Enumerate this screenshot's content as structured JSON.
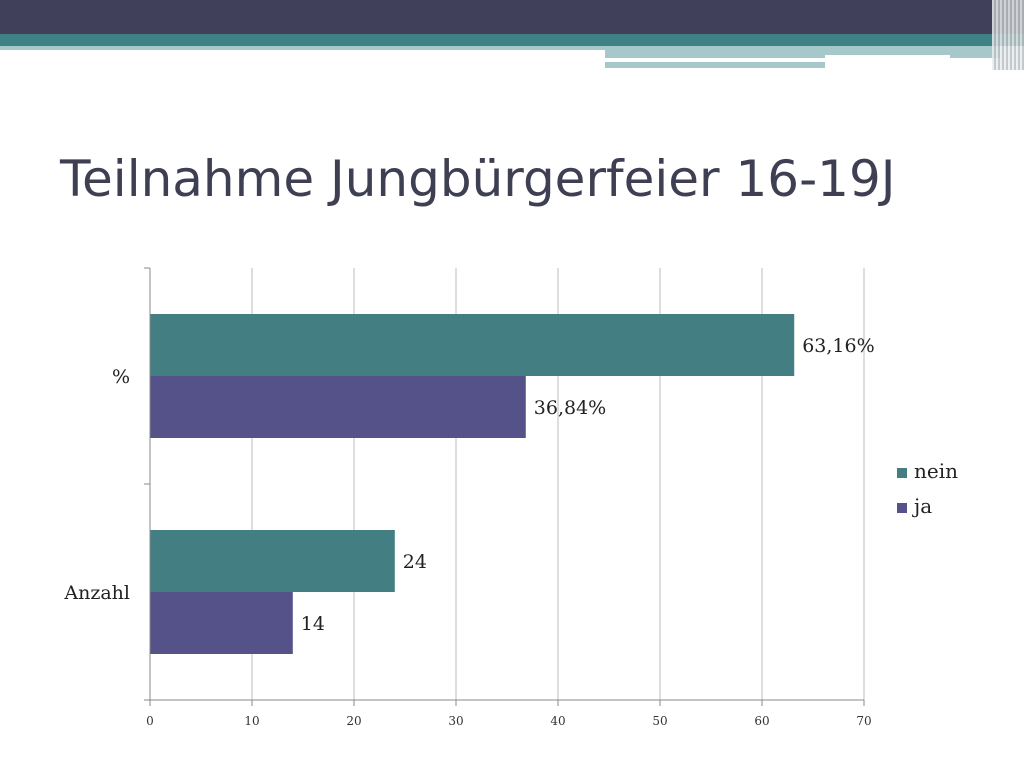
{
  "slide": {
    "title": "Teilnahme Jungbürgerfeier 16-19J"
  },
  "colors": {
    "header_dark": "#40405a",
    "header_teal": "#3f8285",
    "header_light": "#a7c8cb",
    "nein": "#437f82",
    "ja": "#545288",
    "grid": "#bdbdbd",
    "title": "#3e3f52"
  },
  "chart_data": {
    "type": "bar",
    "orientation": "horizontal",
    "categories": [
      "%",
      "Anzahl"
    ],
    "series": [
      {
        "name": "nein",
        "values": [
          63.16,
          24
        ],
        "labels": [
          "63,16%",
          "24"
        ]
      },
      {
        "name": "ja",
        "values": [
          36.84,
          14
        ],
        "labels": [
          "36,84%",
          "14"
        ]
      }
    ],
    "xlim": [
      0,
      70
    ],
    "xticks": [
      0,
      10,
      20,
      30,
      40,
      50,
      60,
      70
    ],
    "grid": true,
    "legend": "right"
  }
}
